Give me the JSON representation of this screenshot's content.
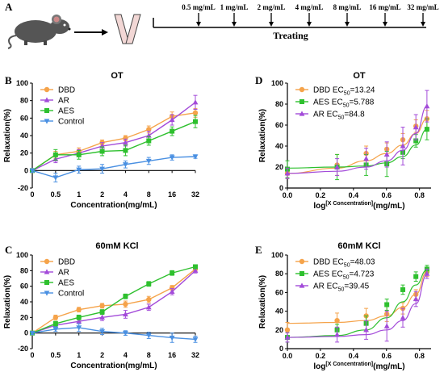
{
  "panel_a": {
    "letter": "A",
    "doses": [
      "0.5 mg/mL",
      "1 mg/mL",
      "2 mg/mL",
      "4 mg/mL",
      "8 mg/mL",
      "16 mg/mL",
      "32 mg/mL"
    ],
    "treating_label": "Treating"
  },
  "colors": {
    "DBD": "#F5A34A",
    "AR": "#A34BD9",
    "AES": "#2EC02E",
    "Control": "#4A90E2"
  },
  "chart_data": [
    {
      "letter": "B",
      "type": "line",
      "title": "OT",
      "xlabel": "Concentration(mg/mL)",
      "ylabel": "Relaxation(%)",
      "categories": [
        "0",
        "0.5",
        "1",
        "2",
        "4",
        "8",
        "16",
        "32"
      ],
      "ylim": [
        -20,
        100
      ],
      "yticks": [
        -20,
        0,
        20,
        40,
        60,
        80,
        100
      ],
      "legend_position": "top-left",
      "series": [
        {
          "name": "DBD",
          "values": [
            0,
            18,
            22,
            32,
            37,
            47,
            62,
            66
          ],
          "err": [
            2,
            4,
            4,
            3,
            3,
            4,
            5,
            5
          ]
        },
        {
          "name": "AR",
          "values": [
            0,
            13,
            20,
            28,
            32,
            40,
            58,
            78
          ],
          "err": [
            2,
            4,
            4,
            4,
            4,
            5,
            6,
            8
          ]
        },
        {
          "name": "AES",
          "values": [
            0,
            18,
            18,
            22,
            23,
            34,
            45,
            56
          ],
          "err": [
            2,
            6,
            5,
            5,
            6,
            5,
            5,
            7
          ]
        },
        {
          "name": "Control",
          "values": [
            0,
            -8,
            1,
            2,
            7,
            11,
            15,
            16
          ],
          "err": [
            2,
            5,
            4,
            5,
            4,
            4,
            3,
            2
          ]
        }
      ]
    },
    {
      "letter": "C",
      "type": "line",
      "title": "60mM KCl",
      "xlabel": "Concentration(mg/mL)",
      "ylabel": "Relaxation(%)",
      "categories": [
        "0",
        "0.5",
        "1",
        "2",
        "4",
        "8",
        "16",
        "32"
      ],
      "ylim": [
        -20,
        100
      ],
      "yticks": [
        -20,
        0,
        20,
        40,
        60,
        80,
        100
      ],
      "legend_position": "top-left",
      "series": [
        {
          "name": "DBD",
          "values": [
            0,
            20,
            30,
            35,
            37,
            43,
            58,
            82
          ],
          "err": [
            2,
            3,
            3,
            3,
            4,
            4,
            3,
            3
          ]
        },
        {
          "name": "AR",
          "values": [
            0,
            10,
            15,
            20,
            24,
            33,
            53,
            80
          ],
          "err": [
            2,
            3,
            3,
            4,
            5,
            4,
            4,
            3
          ]
        },
        {
          "name": "AES",
          "values": [
            0,
            12,
            20,
            27,
            47,
            63,
            77,
            85
          ],
          "err": [
            2,
            3,
            3,
            3,
            3,
            3,
            3,
            2
          ]
        },
        {
          "name": "Control",
          "values": [
            0,
            5,
            7,
            2,
            0,
            -3,
            -6,
            -8
          ],
          "err": [
            2,
            3,
            5,
            4,
            3,
            4,
            6,
            4
          ]
        }
      ]
    },
    {
      "letter": "D",
      "type": "scatter",
      "title": "OT",
      "xlabel_main": "log",
      "xlabel_sup": "[X Concentration]",
      "xlabel_tail": "(mg/mL)",
      "ylabel": "Relaxation(%)",
      "xlim": [
        0,
        0.87
      ],
      "xticks": [
        0.0,
        0.2,
        0.4,
        0.6,
        0.8
      ],
      "ylim": [
        0,
        100
      ],
      "yticks": [
        0,
        20,
        40,
        60,
        80,
        100
      ],
      "legend_position": "top-left",
      "legend": [
        {
          "series": "DBD",
          "label_main": "DBD EC",
          "label_sub": "50",
          "label_value": "=13.24"
        },
        {
          "series": "AES",
          "label_main": "AES EC",
          "label_sub": "50",
          "label_value": "=5.788"
        },
        {
          "series": "AR",
          "label_main": "AR  EC",
          "label_sub": "50",
          "label_value": "=84.8"
        }
      ],
      "x": [
        0.0,
        0.301,
        0.477,
        0.602,
        0.699,
        0.778,
        0.845
      ],
      "series": [
        {
          "name": "DBD",
          "values": [
            14,
            22,
            33,
            37,
            46,
            59,
            66
          ],
          "err": [
            5,
            10,
            7,
            6,
            6,
            6,
            8
          ],
          "fit": [
            14,
            19,
            26,
            33,
            41,
            52,
            66
          ]
        },
        {
          "name": "AES",
          "values": [
            18,
            20,
            22,
            23,
            34,
            45,
            56
          ],
          "err": [
            8,
            12,
            10,
            12,
            6,
            6,
            10
          ],
          "fit": [
            19,
            20,
            21,
            24,
            30,
            41,
            56
          ]
        },
        {
          "name": "AR",
          "values": [
            14,
            20,
            28,
            32,
            40,
            58,
            78
          ],
          "err": [
            5,
            8,
            10,
            12,
            18,
            12,
            15
          ],
          "fit": [
            14,
            16,
            20,
            26,
            36,
            52,
            78
          ]
        }
      ]
    },
    {
      "letter": "E",
      "type": "scatter",
      "title": "60mM KCl",
      "xlabel_main": "log",
      "xlabel_sup": "[X Concentration]",
      "xlabel_tail": "(mg/mL)",
      "ylabel": "Relaxation(%)",
      "xlim": [
        0,
        0.87
      ],
      "xticks": [
        0.0,
        0.2,
        0.4,
        0.6,
        0.8
      ],
      "ylim": [
        0,
        100
      ],
      "yticks": [
        0,
        20,
        40,
        60,
        80,
        100
      ],
      "legend_position": "top-left",
      "legend": [
        {
          "series": "DBD",
          "label_main": "DBD EC",
          "label_sub": "50",
          "label_value": "=48.03"
        },
        {
          "series": "AES",
          "label_main": "AES EC",
          "label_sub": "50",
          "label_value": "=4.723"
        },
        {
          "series": "AR",
          "label_main": "AR  EC",
          "label_sub": "50",
          "label_value": "=39.45"
        }
      ],
      "x": [
        0.0,
        0.301,
        0.477,
        0.602,
        0.699,
        0.778,
        0.845
      ],
      "series": [
        {
          "name": "DBD",
          "values": [
            20,
            30,
            35,
            37,
            43,
            58,
            82
          ],
          "err": [
            8,
            8,
            8,
            8,
            6,
            5,
            5
          ],
          "fit": [
            27,
            28,
            30,
            35,
            44,
            58,
            82
          ]
        },
        {
          "name": "AES",
          "values": [
            12,
            20,
            27,
            47,
            63,
            77,
            85
          ],
          "err": [
            5,
            6,
            8,
            6,
            5,
            5,
            4
          ],
          "fit": [
            12,
            14,
            20,
            33,
            50,
            68,
            84
          ]
        },
        {
          "name": "AR",
          "values": [
            12,
            15,
            20,
            24,
            33,
            53,
            80
          ],
          "err": [
            5,
            8,
            10,
            16,
            10,
            8,
            5
          ],
          "fit": [
            12,
            13,
            15,
            20,
            30,
            48,
            79
          ]
        }
      ]
    }
  ]
}
